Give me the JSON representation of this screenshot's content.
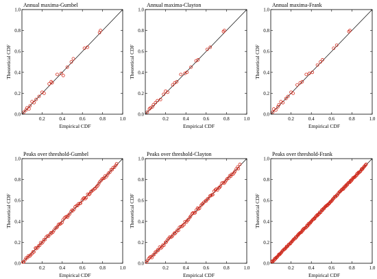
{
  "chart_data": [
    {
      "type": "scatter",
      "title": "Annual maxima-Gumbel",
      "xlabel": "Empirical CDF",
      "ylabel": "Theoretical CDF",
      "xlim": [
        0,
        1
      ],
      "ylim": [
        0,
        1
      ],
      "xticks": [
        "0.2",
        "0.4",
        "0.6",
        "0.8",
        "1.0"
      ],
      "yticks": [
        "0.0",
        "0.2",
        "0.4",
        "0.6",
        "0.8",
        "1.0"
      ],
      "reference_line": "y = x",
      "grid": false,
      "marker_color": "#d42a1c",
      "points": [
        [
          0.02,
          0.02
        ],
        [
          0.04,
          0.04
        ],
        [
          0.05,
          0.06
        ],
        [
          0.07,
          0.05
        ],
        [
          0.08,
          0.08
        ],
        [
          0.1,
          0.12
        ],
        [
          0.12,
          0.11
        ],
        [
          0.14,
          0.14
        ],
        [
          0.17,
          0.17
        ],
        [
          0.2,
          0.21
        ],
        [
          0.22,
          0.2
        ],
        [
          0.27,
          0.29
        ],
        [
          0.29,
          0.31
        ],
        [
          0.3,
          0.3
        ],
        [
          0.35,
          0.38
        ],
        [
          0.39,
          0.39
        ],
        [
          0.41,
          0.37
        ],
        [
          0.45,
          0.45
        ],
        [
          0.49,
          0.5
        ],
        [
          0.51,
          0.53
        ],
        [
          0.62,
          0.63
        ],
        [
          0.65,
          0.64
        ],
        [
          0.77,
          0.78
        ],
        [
          0.78,
          0.8
        ]
      ]
    },
    {
      "type": "scatter",
      "title": "Annual maxima-Clayton",
      "xlabel": "Empirical CDF",
      "ylabel": "Theoretical CDF",
      "xlim": [
        0,
        1
      ],
      "ylim": [
        0,
        1
      ],
      "xticks": [
        "0.2",
        "0.4",
        "0.6",
        "0.8",
        "1.0"
      ],
      "yticks": [
        "0.0",
        "0.2",
        "0.4",
        "0.6",
        "0.8",
        "1.0"
      ],
      "reference_line": "y = x",
      "grid": false,
      "marker_color": "#d42a1c",
      "points": [
        [
          0.02,
          0.02
        ],
        [
          0.04,
          0.05
        ],
        [
          0.05,
          0.06
        ],
        [
          0.07,
          0.07
        ],
        [
          0.08,
          0.09
        ],
        [
          0.1,
          0.11
        ],
        [
          0.12,
          0.13
        ],
        [
          0.15,
          0.14
        ],
        [
          0.18,
          0.19
        ],
        [
          0.2,
          0.22
        ],
        [
          0.22,
          0.21
        ],
        [
          0.27,
          0.28
        ],
        [
          0.29,
          0.3
        ],
        [
          0.31,
          0.31
        ],
        [
          0.35,
          0.38
        ],
        [
          0.39,
          0.39
        ],
        [
          0.41,
          0.4
        ],
        [
          0.45,
          0.45
        ],
        [
          0.5,
          0.51
        ],
        [
          0.52,
          0.52
        ],
        [
          0.61,
          0.62
        ],
        [
          0.64,
          0.64
        ],
        [
          0.77,
          0.79
        ],
        [
          0.78,
          0.8
        ]
      ]
    },
    {
      "type": "scatter",
      "title": "Annual maxima-Frank",
      "xlabel": "Empirical CDF",
      "ylabel": "Theoretical CDF",
      "xlim": [
        0,
        1
      ],
      "ylim": [
        0,
        1
      ],
      "xticks": [
        "0.2",
        "0.4",
        "0.6",
        "0.8",
        "1.0"
      ],
      "yticks": [
        "0.0",
        "0.2",
        "0.4",
        "0.6",
        "0.8",
        "1.0"
      ],
      "reference_line": "y = x",
      "grid": false,
      "marker_color": "#d42a1c",
      "points": [
        [
          0.02,
          0.02
        ],
        [
          0.03,
          0.05
        ],
        [
          0.05,
          0.04
        ],
        [
          0.07,
          0.07
        ],
        [
          0.08,
          0.09
        ],
        [
          0.1,
          0.12
        ],
        [
          0.12,
          0.11
        ],
        [
          0.15,
          0.15
        ],
        [
          0.17,
          0.17
        ],
        [
          0.2,
          0.21
        ],
        [
          0.22,
          0.2
        ],
        [
          0.26,
          0.28
        ],
        [
          0.29,
          0.3
        ],
        [
          0.31,
          0.31
        ],
        [
          0.35,
          0.38
        ],
        [
          0.38,
          0.39
        ],
        [
          0.41,
          0.4
        ],
        [
          0.46,
          0.47
        ],
        [
          0.49,
          0.5
        ],
        [
          0.51,
          0.52
        ],
        [
          0.62,
          0.63
        ],
        [
          0.65,
          0.66
        ],
        [
          0.77,
          0.79
        ],
        [
          0.78,
          0.8
        ]
      ]
    },
    {
      "type": "scatter",
      "title": "Peaks over threshold-Gumbel",
      "xlabel": "Empirical CDF",
      "ylabel": "Theoretical CDF",
      "xlim": [
        0,
        1
      ],
      "ylim": [
        0,
        1
      ],
      "xticks": [
        "0.2",
        "0.4",
        "0.6",
        "0.8",
        "1.0"
      ],
      "yticks": [
        "0.0",
        "0.2",
        "0.4",
        "0.6",
        "0.8",
        "1.0"
      ],
      "reference_line": "y = x",
      "grid": false,
      "marker_color": "#d42a1c",
      "points_description": "dense points along y = x",
      "dense_series": {
        "start": 0.01,
        "end": 0.94,
        "count": 85,
        "jitter": 0.012
      }
    },
    {
      "type": "scatter",
      "title": "Peaks over threshold-Clayton",
      "xlabel": "Empirical CDF",
      "ylabel": "Theoretical CDF",
      "xlim": [
        0,
        1
      ],
      "ylim": [
        0,
        1
      ],
      "xticks": [
        "0.2",
        "0.4",
        "0.6",
        "0.8",
        "1.0"
      ],
      "yticks": [
        "0.0",
        "0.2",
        "0.4",
        "0.6",
        "0.8",
        "1.0"
      ],
      "reference_line": "y = x",
      "grid": false,
      "marker_color": "#d42a1c",
      "dense_series": {
        "start": 0.01,
        "end": 0.93,
        "count": 85,
        "jitter": 0.013
      }
    },
    {
      "type": "scatter",
      "title": "Peaks over threshold-Frank",
      "xlabel": "Empirical CDF",
      "ylabel": "Theoretical CDF",
      "xlim": [
        0,
        1
      ],
      "ylim": [
        0,
        1
      ],
      "xticks": [
        "0.2",
        "0.4",
        "0.6",
        "0.8",
        "1.0"
      ],
      "yticks": [
        "0.0",
        "0.2",
        "0.4",
        "0.6",
        "0.8",
        "1.0"
      ],
      "reference_line": "y = x",
      "grid": false,
      "marker_color": "#d42a1c",
      "dense_series": {
        "start": 0.01,
        "end": 0.94,
        "count": 160,
        "jitter": 0.006
      }
    }
  ]
}
